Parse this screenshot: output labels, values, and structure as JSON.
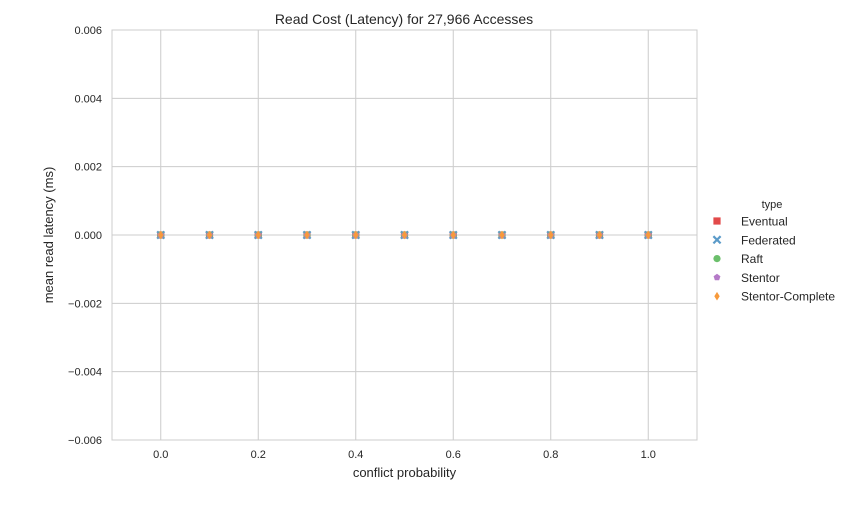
{
  "chart_data": {
    "type": "scatter",
    "title": "Read Cost (Latency) for 27,966 Accesses",
    "xlabel": "conflict probability",
    "ylabel": "mean read latency (ms)",
    "xlim": [
      -0.1,
      1.1
    ],
    "ylim": [
      -0.006,
      0.006
    ],
    "x_ticks": [
      0.0,
      0.2,
      0.4,
      0.6,
      0.8,
      1.0
    ],
    "x_tick_labels": [
      "0.0",
      "0.2",
      "0.4",
      "0.6",
      "0.8",
      "1.0"
    ],
    "y_ticks": [
      0.006,
      0.004,
      0.002,
      0.0,
      -0.002,
      -0.004,
      -0.006
    ],
    "y_tick_labels": [
      "0.006",
      "0.004",
      "0.002",
      "0.000",
      "−0.002",
      "−0.004",
      "−0.006"
    ],
    "grid": true,
    "legend": {
      "title": "type",
      "position": "right"
    },
    "series": [
      {
        "name": "Eventual",
        "marker": "square",
        "color": "#e24a4a",
        "x": [
          0.0,
          0.1,
          0.2,
          0.3,
          0.4,
          0.5,
          0.6,
          0.7,
          0.8,
          0.9,
          1.0
        ],
        "y": [
          0,
          0,
          0,
          0,
          0,
          0,
          0,
          0,
          0,
          0,
          0
        ]
      },
      {
        "name": "Federated",
        "marker": "x",
        "color": "#5b9bc9",
        "x": [
          0.0,
          0.1,
          0.2,
          0.3,
          0.4,
          0.5,
          0.6,
          0.7,
          0.8,
          0.9,
          1.0
        ],
        "y": [
          0,
          0,
          0,
          0,
          0,
          0,
          0,
          0,
          0,
          0,
          0
        ]
      },
      {
        "name": "Raft",
        "marker": "circle",
        "color": "#6bbf6b",
        "x": [
          0.0,
          0.1,
          0.2,
          0.3,
          0.4,
          0.5,
          0.6,
          0.7,
          0.8,
          0.9,
          1.0
        ],
        "y": [
          0,
          0,
          0,
          0,
          0,
          0,
          0,
          0,
          0,
          0,
          0
        ]
      },
      {
        "name": "Stentor",
        "marker": "pentagon",
        "color": "#b57ac8",
        "x": [
          0.0,
          0.1,
          0.2,
          0.3,
          0.4,
          0.5,
          0.6,
          0.7,
          0.8,
          0.9,
          1.0
        ],
        "y": [
          0,
          0,
          0,
          0,
          0,
          0,
          0,
          0,
          0,
          0,
          0
        ]
      },
      {
        "name": "Stentor-Complete",
        "marker": "diamond",
        "color": "#f79a3c",
        "x": [
          0.0,
          0.1,
          0.2,
          0.3,
          0.4,
          0.5,
          0.6,
          0.7,
          0.8,
          0.9,
          1.0
        ],
        "y": [
          0,
          0,
          0,
          0,
          0,
          0,
          0,
          0,
          0,
          0,
          0
        ]
      }
    ]
  }
}
